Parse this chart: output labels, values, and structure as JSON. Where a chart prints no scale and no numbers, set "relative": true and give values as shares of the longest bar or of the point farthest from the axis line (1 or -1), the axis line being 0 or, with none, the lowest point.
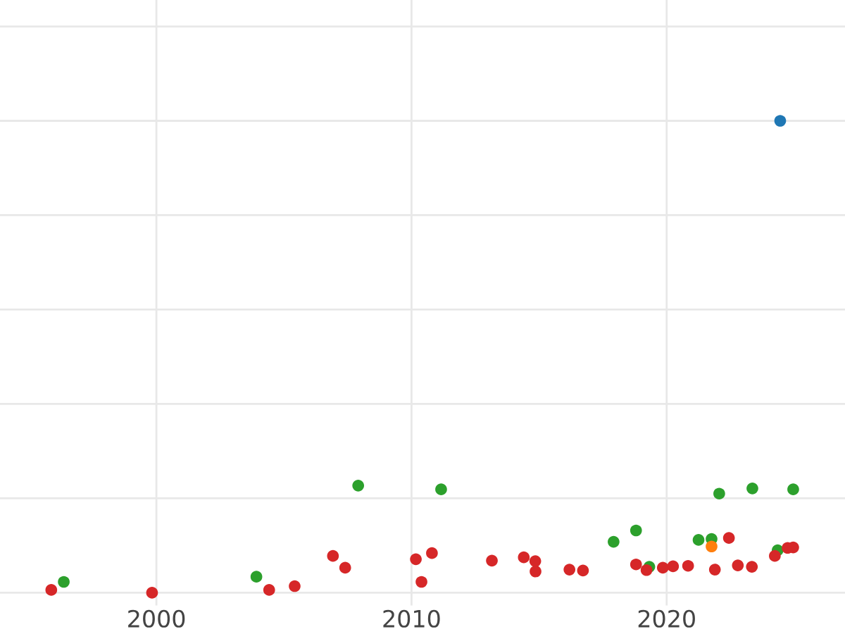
{
  "chart_data": {
    "type": "scatter",
    "relative": true,
    "grid": true,
    "tick_labels": "x",
    "marker": "circle",
    "xlim": [
      1993.87,
      2026.99
    ],
    "xticks": [
      2000,
      2010,
      2020
    ],
    "series": [
      {
        "color": "#2ca02c",
        "x": [
          1996.37,
          2003.92,
          2007.91,
          2011.16,
          2017.92,
          2018.8,
          2019.32,
          2021.25,
          2021.76,
          2022.06,
          2023.36,
          2024.35,
          2024.96
        ],
        "values": [
          0.023,
          0.034,
          0.227,
          0.219,
          0.108,
          0.132,
          0.055,
          0.112,
          0.114,
          0.21,
          0.221,
          0.09,
          0.219
        ]
      },
      {
        "color": "#ff7f0e",
        "x": [
          2021.76
        ],
        "values": [
          0.098
        ]
      },
      {
        "color": "#d62728",
        "x": [
          1995.88,
          1999.83,
          2004.42,
          2005.42,
          2006.92,
          2007.4,
          2010.17,
          2010.39,
          2010.8,
          2013.15,
          2014.4,
          2014.85,
          2014.86,
          2016.19,
          2016.72,
          2018.8,
          2019.21,
          2019.85,
          2020.25,
          2020.84,
          2021.89,
          2022.44,
          2022.79,
          2023.34,
          2024.24,
          2024.74,
          2024.96
        ],
        "values": [
          0.006,
          0,
          0.006,
          0.014,
          0.078,
          0.053,
          0.071,
          0.023,
          0.084,
          0.068,
          0.075,
          0.067,
          0.045,
          0.049,
          0.047,
          0.06,
          0.048,
          0.053,
          0.056,
          0.057,
          0.049,
          0.116,
          0.058,
          0.055,
          0.078,
          0.095,
          0.096
        ]
      },
      {
        "color": "#1f77b4",
        "x": [
          2024.45
        ],
        "values": [
          1
        ]
      }
    ]
  }
}
